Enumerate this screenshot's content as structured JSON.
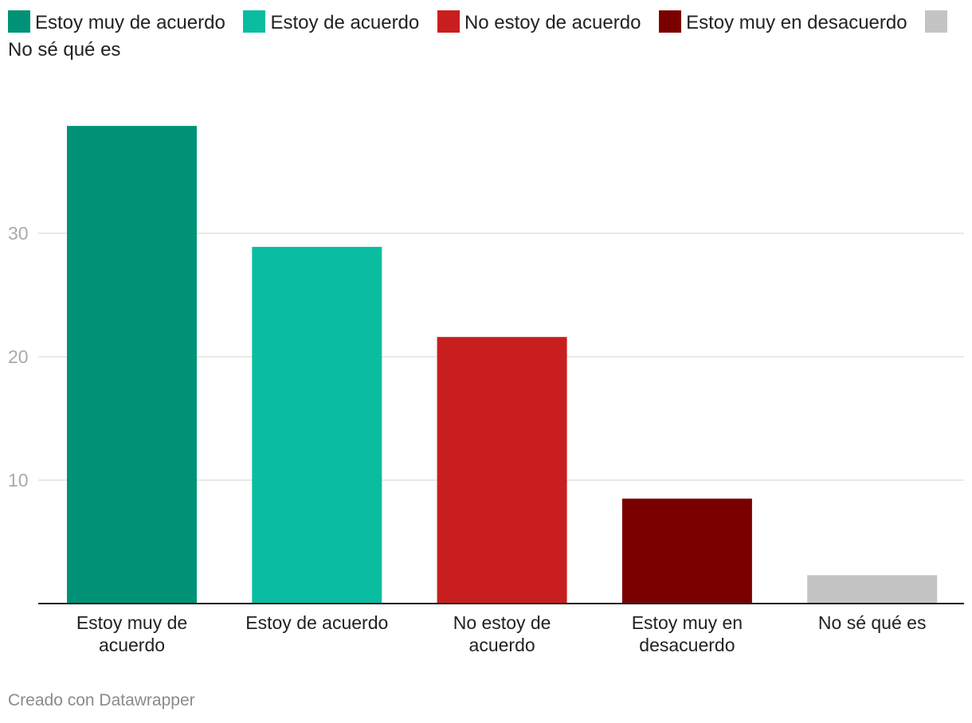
{
  "chart_data": {
    "type": "bar",
    "title": "",
    "xlabel": "",
    "ylabel": "",
    "categories": [
      [
        "Estoy muy de",
        "acuerdo"
      ],
      [
        "Estoy de acuerdo"
      ],
      [
        "No estoy de",
        "acuerdo"
      ],
      [
        "Estoy muy en",
        "desacuerdo"
      ],
      [
        "No sé qué es"
      ]
    ],
    "values": [
      38.7,
      28.9,
      21.6,
      8.5,
      2.3
    ],
    "colors": [
      "#009276",
      "#0abda0",
      "#c91e1f",
      "#7a0000",
      "#c4c4c4"
    ],
    "legend": [
      {
        "label": "Estoy muy de acuerdo",
        "color": "#009276"
      },
      {
        "label": "Estoy de acuerdo",
        "color": "#0abda0"
      },
      {
        "label": "No estoy de acuerdo",
        "color": "#c91e1f"
      },
      {
        "label": "Estoy muy en desacuerdo",
        "color": "#7a0000"
      },
      {
        "label": "No sé qué es",
        "color": "#c4c4c4"
      }
    ],
    "yticks": [
      10,
      20,
      30
    ],
    "ylim": [
      0,
      40
    ],
    "grid": true,
    "legend_position": "top"
  },
  "footer": {
    "credit": "Creado con Datawrapper"
  }
}
